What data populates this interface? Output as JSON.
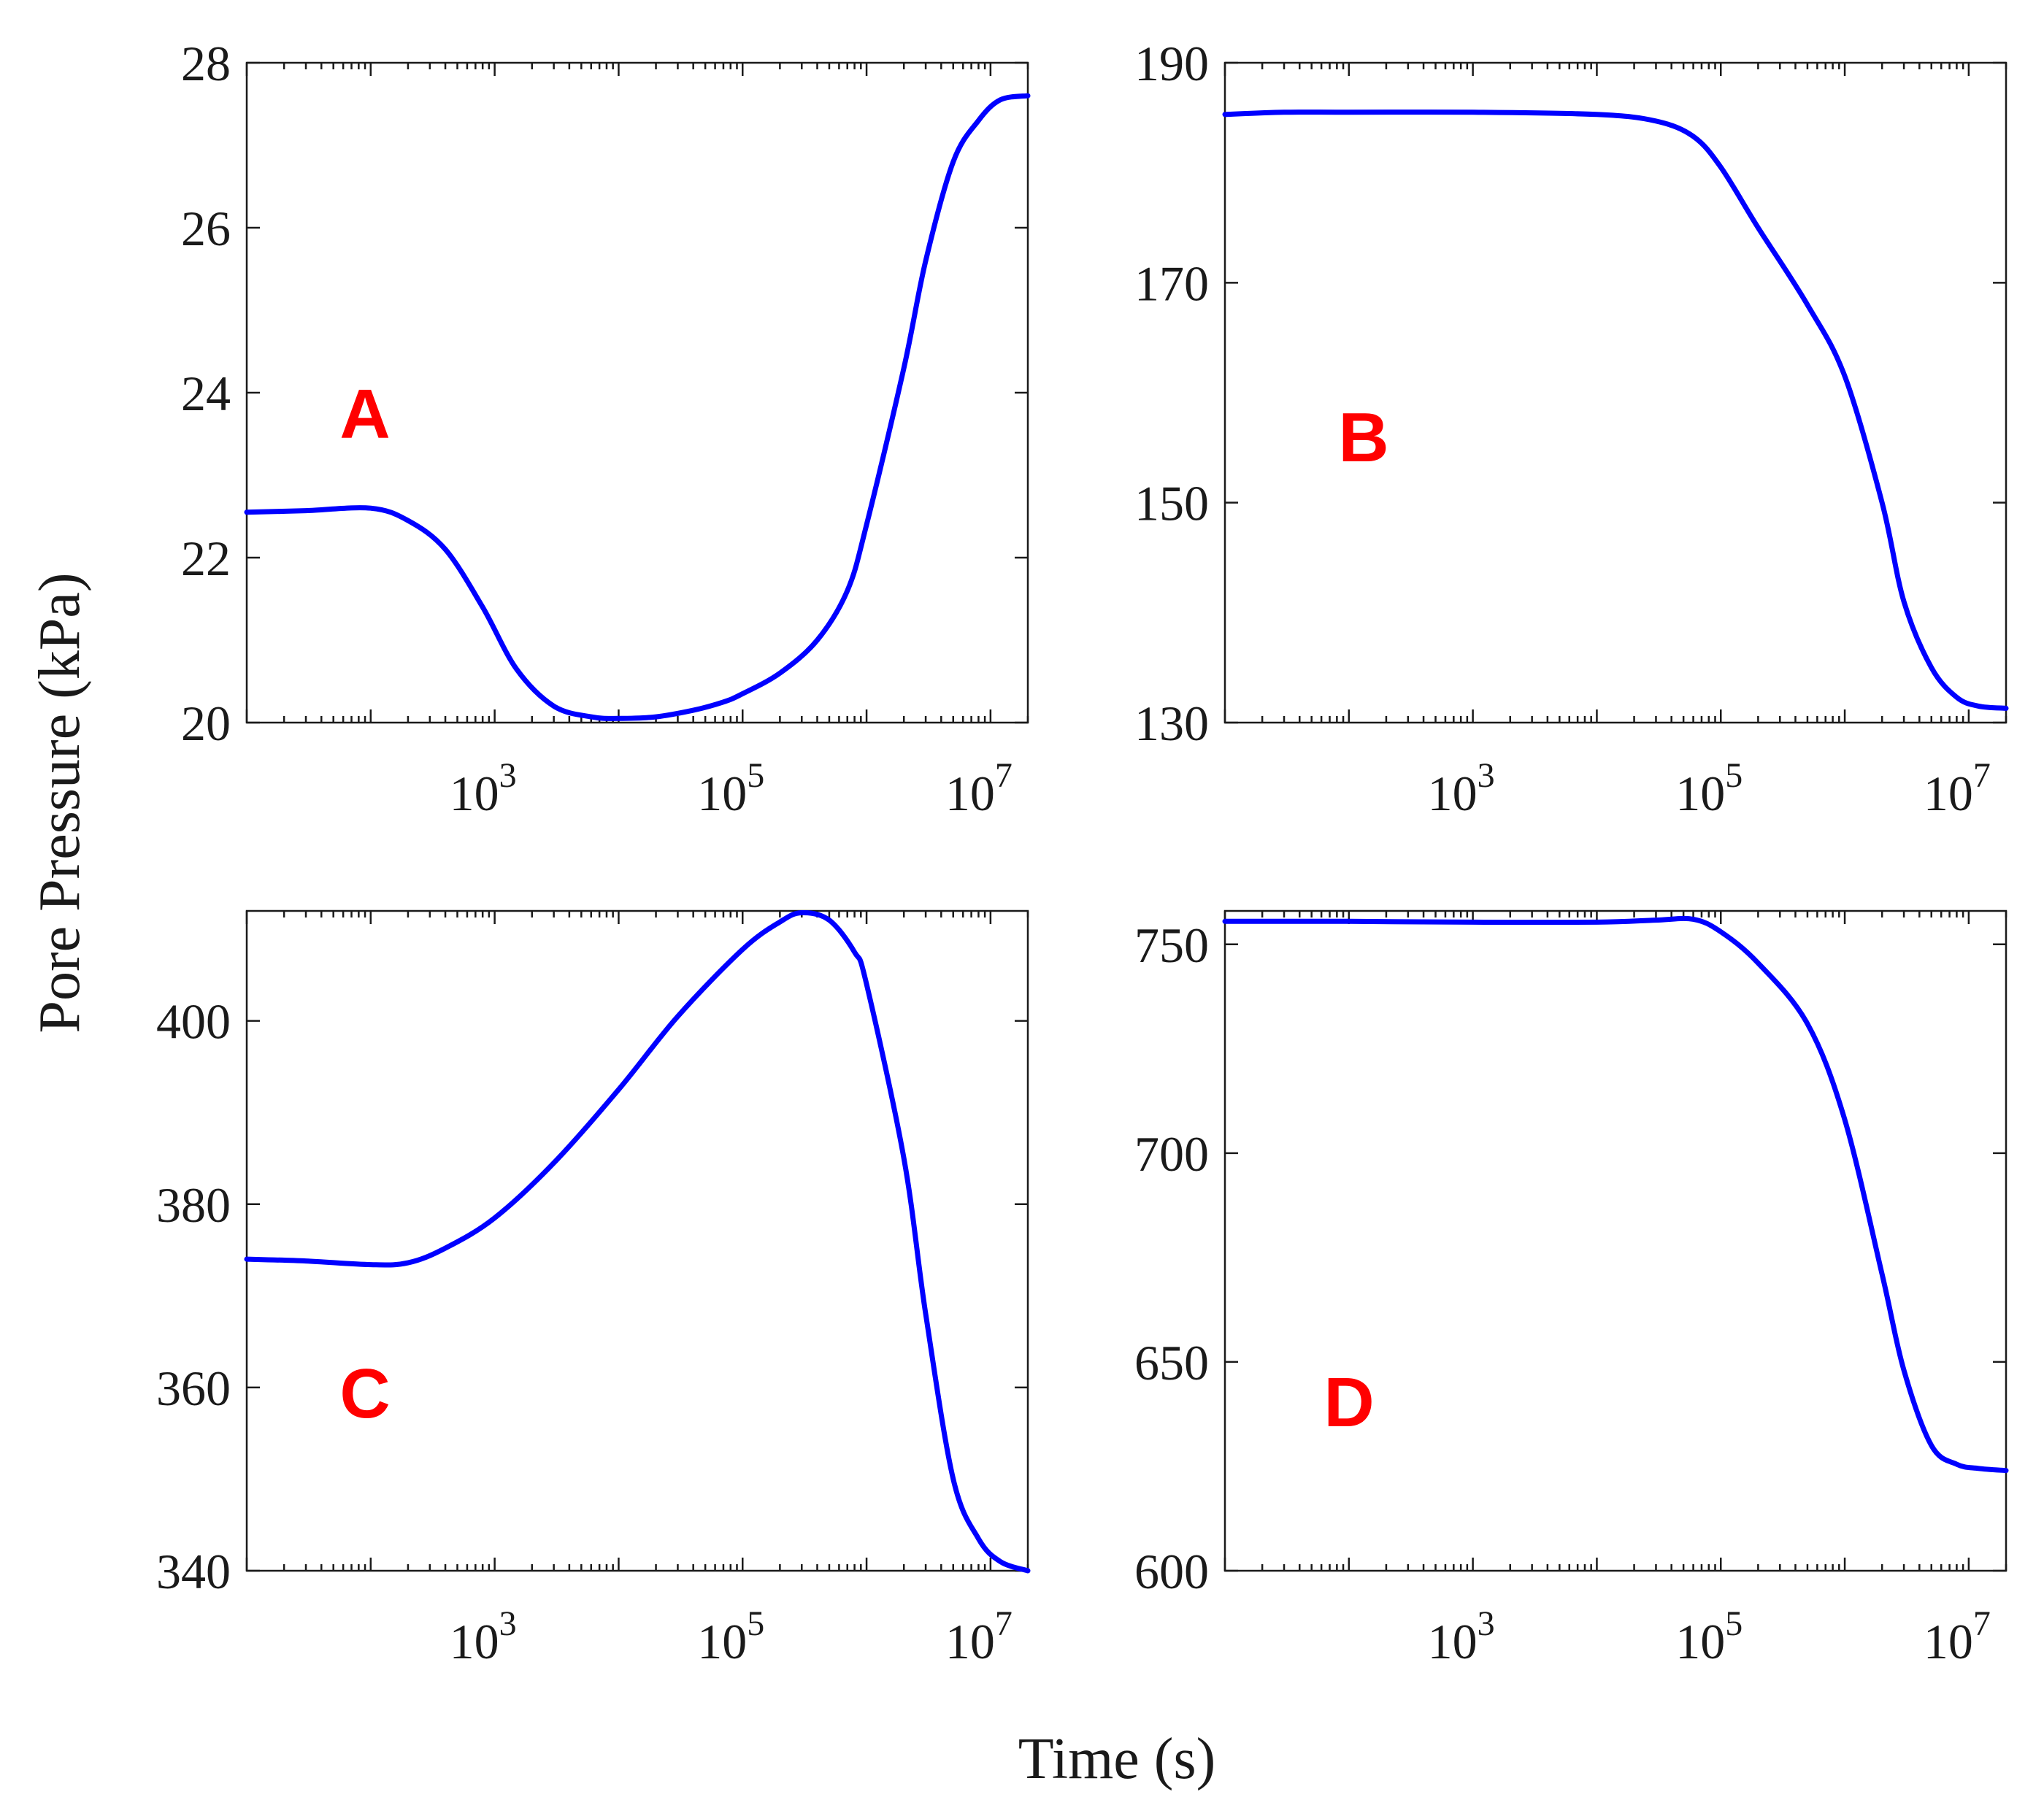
{
  "figure": {
    "xlabel": "Time (s)",
    "ylabel": "Pore Pressure (kPa)"
  },
  "colors": {
    "curve": "#0000ff",
    "panel_letter": "#ff0000",
    "axes": "#1a1a1a"
  },
  "chart_data": [
    {
      "type": "line",
      "panel": "A",
      "xscale": "log",
      "xlim": [
        10,
        20000000
      ],
      "ylim": [
        20,
        28
      ],
      "xticks": [
        1000,
        100000,
        10000000
      ],
      "xtick_labels": [
        {
          "base": "10",
          "exp": "3"
        },
        {
          "base": "10",
          "exp": "5"
        },
        {
          "base": "10",
          "exp": "7"
        }
      ],
      "yticks": [
        20,
        22,
        24,
        26,
        28
      ],
      "ytick_labels": [
        "20",
        "22",
        "24",
        "26",
        "28"
      ],
      "series": [
        {
          "x": [
            10,
            30,
            100,
            200,
            400,
            800,
            1500,
            3000,
            6000,
            10000,
            20000,
            40000,
            70000,
            100000,
            200000,
            400000,
            700000,
            1000000,
            2000000,
            3000000,
            5000000,
            8000000,
            12000000,
            20000000
          ],
          "y": [
            22.55,
            22.57,
            22.6,
            22.45,
            22.1,
            21.4,
            20.65,
            20.2,
            20.07,
            20.05,
            20.07,
            20.15,
            20.25,
            20.35,
            20.6,
            21.0,
            21.6,
            22.4,
            24.3,
            25.6,
            26.8,
            27.3,
            27.55,
            27.6
          ]
        }
      ]
    },
    {
      "type": "line",
      "panel": "B",
      "xscale": "log",
      "xlim": [
        10,
        20000000
      ],
      "ylim": [
        130,
        190
      ],
      "xticks": [
        1000,
        100000,
        10000000
      ],
      "xtick_labels": [
        {
          "base": "10",
          "exp": "3"
        },
        {
          "base": "10",
          "exp": "5"
        },
        {
          "base": "10",
          "exp": "7"
        }
      ],
      "yticks": [
        130,
        150,
        170,
        190
      ],
      "ytick_labels": [
        "130",
        "150",
        "170",
        "190"
      ],
      "series": [
        {
          "x": [
            10,
            30,
            100,
            1000,
            10000,
            30000,
            60000,
            100000,
            200000,
            500000,
            1000000,
            2000000,
            3000000,
            5000000,
            8000000,
            12000000,
            20000000
          ],
          "y": [
            185.3,
            185.5,
            185.5,
            185.5,
            185.3,
            184.7,
            183.3,
            180.5,
            175.0,
            168.0,
            161.5,
            150.0,
            141.0,
            135.0,
            132.3,
            131.5,
            131.3
          ]
        }
      ]
    },
    {
      "type": "line",
      "panel": "C",
      "xscale": "log",
      "xlim": [
        10,
        20000000
      ],
      "ylim": [
        340,
        412
      ],
      "xticks": [
        1000,
        100000,
        10000000
      ],
      "xtick_labels": [
        {
          "base": "10",
          "exp": "3"
        },
        {
          "base": "10",
          "exp": "5"
        },
        {
          "base": "10",
          "exp": "7"
        }
      ],
      "yticks": [
        340,
        360,
        380,
        400
      ],
      "ytick_labels": [
        "340",
        "360",
        "380",
        "400"
      ],
      "series": [
        {
          "x": [
            10,
            30,
            100,
            200,
            400,
            1000,
            3000,
            10000,
            30000,
            100000,
            200000,
            300000,
            500000,
            800000,
            1000000,
            2000000,
            3000000,
            5000000,
            8000000,
            12000000,
            20000000
          ],
          "y": [
            374.0,
            373.8,
            373.4,
            373.6,
            375.2,
            378.5,
            384.5,
            392.5,
            400.5,
            407.8,
            410.8,
            411.8,
            411.0,
            407.5,
            404.0,
            385.0,
            368.0,
            350.0,
            343.5,
            341.0,
            340.0
          ]
        }
      ]
    },
    {
      "type": "line",
      "panel": "D",
      "xscale": "log",
      "xlim": [
        10,
        20000000
      ],
      "ylim": [
        600,
        758
      ],
      "xticks": [
        1000,
        100000,
        10000000
      ],
      "xtick_labels": [
        {
          "base": "10",
          "exp": "3"
        },
        {
          "base": "10",
          "exp": "5"
        },
        {
          "base": "10",
          "exp": "7"
        }
      ],
      "yticks": [
        600,
        650,
        700,
        750
      ],
      "ytick_labels": [
        "600",
        "650",
        "700",
        "750"
      ],
      "series": [
        {
          "x": [
            10,
            100,
            1000,
            10000,
            30000,
            60000,
            100000,
            200000,
            500000,
            1000000,
            2000000,
            3000000,
            5000000,
            8000000,
            12000000,
            20000000
          ],
          "y": [
            755.5,
            755.5,
            755.3,
            755.3,
            755.8,
            756.0,
            753.0,
            745.5,
            731.0,
            708.0,
            671.0,
            648.0,
            630.0,
            625.5,
            624.5,
            624.0
          ]
        }
      ]
    }
  ]
}
